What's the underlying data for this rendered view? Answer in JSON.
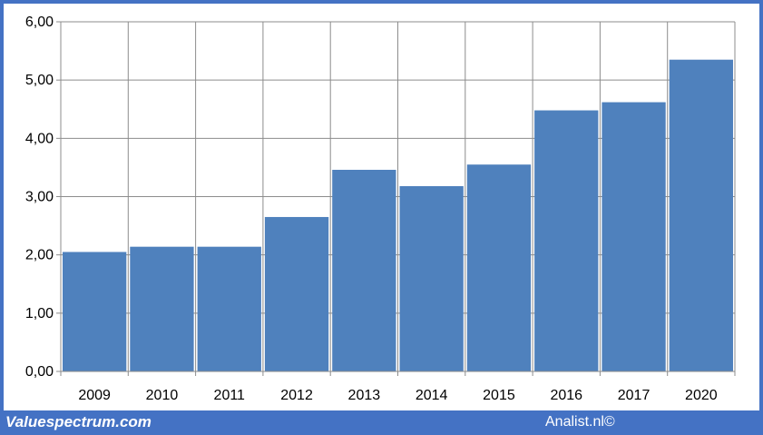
{
  "chart_data": {
    "type": "bar",
    "categories": [
      "2009",
      "2010",
      "2011",
      "2012",
      "2013",
      "2014",
      "2015",
      "2016",
      "2017",
      "2020"
    ],
    "values": [
      2.05,
      2.14,
      2.14,
      2.65,
      3.46,
      3.18,
      3.55,
      4.48,
      4.62,
      5.35
    ],
    "yticks": [
      "0,00",
      "1,00",
      "2,00",
      "3,00",
      "4,00",
      "5,00",
      "6,00"
    ],
    "ylim": [
      0,
      6
    ],
    "grid": true,
    "bar_color": "#4f81bd"
  },
  "footer": {
    "left": "Valuespectrum.com",
    "right": "Analist.nl©"
  },
  "colors": {
    "frame": "#4472c4",
    "grid": "#8c8c8c"
  }
}
